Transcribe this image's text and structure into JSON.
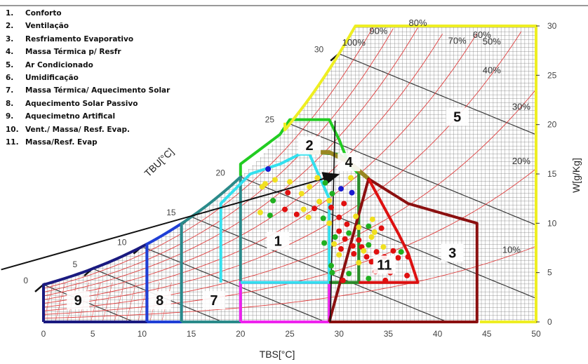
{
  "chart_data": {
    "type": "psychrometric",
    "xlabel": "TBS[°C]",
    "ylabel": "W[g/Kg]",
    "wetbulb_label": "TBU[°C]",
    "xlim": [
      0,
      50
    ],
    "ylim": [
      0,
      30
    ],
    "x_ticks": [
      0,
      5,
      10,
      15,
      20,
      25,
      30,
      35,
      40,
      45,
      50
    ],
    "y_ticks": [
      0,
      5,
      10,
      15,
      20,
      25,
      30
    ],
    "wetbulb_ticks": [
      {
        "label": "0",
        "t": 0
      },
      {
        "label": "5",
        "t": 5
      },
      {
        "label": "10",
        "t": 10
      },
      {
        "label": "15",
        "t": 15
      },
      {
        "label": "20",
        "t": 20
      },
      {
        "label": "25",
        "t": 25
      },
      {
        "label": "30",
        "t": 30
      }
    ],
    "rh_labels": [
      {
        "label": "100%",
        "rh": 100
      },
      {
        "label": "90%",
        "rh": 90
      },
      {
        "label": "80%",
        "rh": 80
      },
      {
        "label": "70%",
        "rh": 70
      },
      {
        "label": "60%",
        "rh": 60
      },
      {
        "label": "50%",
        "rh": 50
      },
      {
        "label": "40%",
        "rh": 40
      },
      {
        "label": "30%",
        "rh": 30
      },
      {
        "label": "20%",
        "rh": 20
      },
      {
        "label": "10%",
        "rh": 10
      }
    ],
    "legend": [
      {
        "num": "1.",
        "label": "Conforto"
      },
      {
        "num": "2.",
        "label": "Ventilação"
      },
      {
        "num": "3.",
        "label": "Resfriamento Evaporativo"
      },
      {
        "num": "4.",
        "label": "Massa Térmica p/ Resfr"
      },
      {
        "num": "5.",
        "label": "Ar Condicionado"
      },
      {
        "num": "6.",
        "label": "Umidificação"
      },
      {
        "num": "7.",
        "label": "Massa Térmica/ Aquecimento Solar"
      },
      {
        "num": "8.",
        "label": "Aquecimento Solar Passivo"
      },
      {
        "num": "9.",
        "label": "Aquecimetno Artifical"
      },
      {
        "num": "10.",
        "label": "Vent./ Massa/ Resf. Evap."
      },
      {
        "num": "11.",
        "label": "Massa/Resf. Evap"
      }
    ],
    "zones": [
      {
        "label": "9",
        "color": "#1a1a80",
        "x": 3.5,
        "y": 2.2
      },
      {
        "label": "8",
        "color": "#1f3fd6",
        "x": 11.8,
        "y": 2.2
      },
      {
        "label": "7",
        "color": "#2a8a8a",
        "x": 17.3,
        "y": 2.2
      },
      {
        "label": "1",
        "color": "#33e0ee",
        "x": 23.8,
        "y": 8.2
      },
      {
        "label": "2",
        "color": "#22cc22",
        "x": 27.0,
        "y": 17.9
      },
      {
        "label": "3",
        "color": "#8b1010",
        "x": 41.5,
        "y": 7.0
      },
      {
        "label": "4",
        "color": "#998822",
        "x": 31.0,
        "y": 16.2
      },
      {
        "label": "5",
        "color": "#eeee22",
        "x": 42.0,
        "y": 20.8
      },
      {
        "label": "11",
        "color": "#dd1111",
        "x": 34.6,
        "y": 5.8
      }
    ],
    "points": [
      {
        "x": 22.8,
        "y": 15.5,
        "c": "blue"
      },
      {
        "x": 22.5,
        "y": 14.0,
        "c": "yellow"
      },
      {
        "x": 23.5,
        "y": 14.4,
        "c": "yellow"
      },
      {
        "x": 25.0,
        "y": 14.2,
        "c": "yellow"
      },
      {
        "x": 22.2,
        "y": 13.7,
        "c": "yellow"
      },
      {
        "x": 24.8,
        "y": 13.1,
        "c": "red"
      },
      {
        "x": 26.2,
        "y": 13.0,
        "c": "yellow"
      },
      {
        "x": 27.0,
        "y": 13.7,
        "c": "yellow"
      },
      {
        "x": 27.8,
        "y": 14.6,
        "c": "yellow"
      },
      {
        "x": 28.6,
        "y": 14.1,
        "c": "green"
      },
      {
        "x": 29.3,
        "y": 13.0,
        "c": "green"
      },
      {
        "x": 30.2,
        "y": 13.5,
        "c": "blue"
      },
      {
        "x": 31.2,
        "y": 14.6,
        "c": "yellow"
      },
      {
        "x": 31.3,
        "y": 13.1,
        "c": "blue"
      },
      {
        "x": 23.3,
        "y": 12.3,
        "c": "green"
      },
      {
        "x": 28.0,
        "y": 12.2,
        "c": "yellow"
      },
      {
        "x": 29.0,
        "y": 12.3,
        "c": "yellow"
      },
      {
        "x": 30.5,
        "y": 12.0,
        "c": "red"
      },
      {
        "x": 24.5,
        "y": 11.4,
        "c": "red"
      },
      {
        "x": 26.4,
        "y": 11.4,
        "c": "yellow"
      },
      {
        "x": 27.5,
        "y": 11.5,
        "c": "red"
      },
      {
        "x": 29.2,
        "y": 11.6,
        "c": "red"
      },
      {
        "x": 22.0,
        "y": 11.1,
        "c": "yellow"
      },
      {
        "x": 23.0,
        "y": 10.8,
        "c": "green"
      },
      {
        "x": 25.7,
        "y": 10.9,
        "c": "red"
      },
      {
        "x": 26.9,
        "y": 10.6,
        "c": "yellow"
      },
      {
        "x": 28.4,
        "y": 10.5,
        "c": "green"
      },
      {
        "x": 30.0,
        "y": 10.6,
        "c": "red"
      },
      {
        "x": 31.7,
        "y": 10.7,
        "c": "yellow"
      },
      {
        "x": 29.0,
        "y": 10.0,
        "c": "yellow"
      },
      {
        "x": 30.8,
        "y": 9.9,
        "c": "red"
      },
      {
        "x": 32.0,
        "y": 9.6,
        "c": "yellow"
      },
      {
        "x": 33.4,
        "y": 10.4,
        "c": "yellow"
      },
      {
        "x": 33.0,
        "y": 9.7,
        "c": "green"
      },
      {
        "x": 30.0,
        "y": 9.2,
        "c": "red"
      },
      {
        "x": 31.0,
        "y": 9.0,
        "c": "green"
      },
      {
        "x": 33.6,
        "y": 9.1,
        "c": "yellow"
      },
      {
        "x": 34.3,
        "y": 9.5,
        "c": "red"
      },
      {
        "x": 29.6,
        "y": 8.6,
        "c": "green"
      },
      {
        "x": 30.6,
        "y": 8.4,
        "c": "red"
      },
      {
        "x": 32.0,
        "y": 8.3,
        "c": "red"
      },
      {
        "x": 33.3,
        "y": 8.6,
        "c": "yellow"
      },
      {
        "x": 28.5,
        "y": 8.0,
        "c": "green"
      },
      {
        "x": 29.5,
        "y": 7.9,
        "c": "yellow"
      },
      {
        "x": 31.4,
        "y": 7.7,
        "c": "red"
      },
      {
        "x": 32.3,
        "y": 7.6,
        "c": "red"
      },
      {
        "x": 33.0,
        "y": 7.8,
        "c": "green"
      },
      {
        "x": 34.5,
        "y": 7.6,
        "c": "yellow"
      },
      {
        "x": 30.2,
        "y": 7.4,
        "c": "red"
      },
      {
        "x": 32.5,
        "y": 7.2,
        "c": "yellow"
      },
      {
        "x": 33.8,
        "y": 7.1,
        "c": "red"
      },
      {
        "x": 35.5,
        "y": 7.2,
        "c": "red"
      },
      {
        "x": 36.3,
        "y": 7.1,
        "c": "green"
      },
      {
        "x": 30.0,
        "y": 6.8,
        "c": "yellow"
      },
      {
        "x": 31.5,
        "y": 6.9,
        "c": "red"
      },
      {
        "x": 32.8,
        "y": 6.6,
        "c": "red"
      },
      {
        "x": 34.6,
        "y": 6.6,
        "c": "red"
      },
      {
        "x": 36.0,
        "y": 6.5,
        "c": "red"
      },
      {
        "x": 37.0,
        "y": 6.6,
        "c": "red"
      },
      {
        "x": 32.0,
        "y": 6.0,
        "c": "yellow"
      },
      {
        "x": 33.3,
        "y": 6.1,
        "c": "red"
      },
      {
        "x": 29.2,
        "y": 5.7,
        "c": "green"
      },
      {
        "x": 33.7,
        "y": 5.1,
        "c": "red"
      },
      {
        "x": 35.2,
        "y": 5.0,
        "c": "red"
      },
      {
        "x": 31.0,
        "y": 4.9,
        "c": "green"
      },
      {
        "x": 29.3,
        "y": 5.0,
        "c": "green"
      },
      {
        "x": 36.9,
        "y": 4.7,
        "c": "red"
      },
      {
        "x": 30.4,
        "y": 4.2,
        "c": "red"
      },
      {
        "x": 33.0,
        "y": 4.4,
        "c": "green"
      },
      {
        "x": 34.7,
        "y": 4.2,
        "c": "red"
      }
    ]
  }
}
